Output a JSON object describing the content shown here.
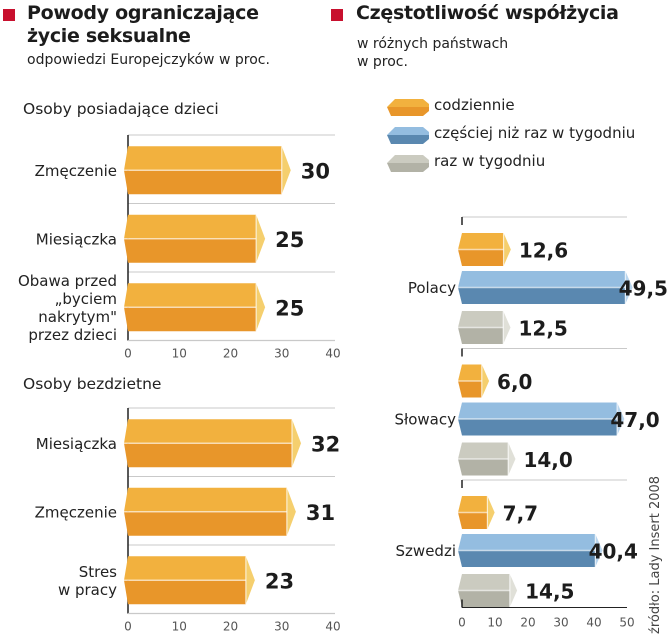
{
  "left_header": {
    "title_line1": "Powody ograniczające",
    "title_line2": "życie seksualne",
    "subtitle": "odpowiedzi Europejczyków w proc."
  },
  "right_header": {
    "title": "Częstotliwość współżycia",
    "subtitle_line1": "w różnych państwach",
    "subtitle_line2": "w proc."
  },
  "legend": [
    {
      "label": "codziennie",
      "series": "daily"
    },
    {
      "label": "częściej niż raz w tygodniu",
      "series": "more_than_weekly"
    },
    {
      "label": "raz w tygodniu",
      "series": "weekly"
    }
  ],
  "colors": {
    "accent_square": "#c8102e",
    "orange_top": "#f2b13e",
    "orange_bottom": "#e8962a",
    "orange_end": "#f5cf6e",
    "blue_top": "#94bde0",
    "blue_bottom": "#5a88b0",
    "blue_end": "#bad6ee",
    "gray_top": "#cbcbc0",
    "gray_bottom": "#b2b2a6",
    "gray_end": "#e0e0d8",
    "axis": "#222222",
    "grid": "#c9c9c9",
    "tick_label": "#555555"
  },
  "source": "źródło: Lady Insert 2008",
  "chart_data": [
    {
      "type": "bar",
      "orientation": "horizontal",
      "title": "Osoby posiadające dzieci",
      "categories": [
        "Zmęczenie",
        "Miesiączka",
        "Obawa przed „byciem nakrytym\" przez dzieci"
      ],
      "category_lines": [
        [
          "Zmęczenie"
        ],
        [
          "Miesiączka"
        ],
        [
          "Obawa przed",
          "„byciem",
          "nakrytym\"",
          "przez dzieci"
        ]
      ],
      "values": [
        30,
        25,
        25
      ],
      "value_labels": [
        "30",
        "25",
        "25"
      ],
      "xlim": [
        0,
        40
      ],
      "xticks": [
        "0",
        "10",
        "20",
        "30",
        "40"
      ],
      "unit": "proc.",
      "grid": true
    },
    {
      "type": "bar",
      "orientation": "horizontal",
      "title": "Osoby bezdzietne",
      "categories": [
        "Miesiączka",
        "Zmęczenie",
        "Stres w pracy"
      ],
      "category_lines": [
        [
          "Miesiączka"
        ],
        [
          "Zmęczenie"
        ],
        [
          "Stres",
          "w pracy"
        ]
      ],
      "values": [
        32,
        31,
        23
      ],
      "value_labels": [
        "32",
        "31",
        "23"
      ],
      "xlim": [
        0,
        40
      ],
      "xticks": [
        "0",
        "10",
        "20",
        "30",
        "40"
      ],
      "unit": "proc.",
      "grid": true
    },
    {
      "type": "bar",
      "orientation": "horizontal",
      "title": "Częstotliwość współżycia",
      "categories": [
        "Polacy",
        "Słowacy",
        "Szwedzi"
      ],
      "series": [
        {
          "name": "codziennie",
          "key": "daily",
          "values": [
            12.6,
            6.0,
            7.7
          ],
          "value_labels": [
            "12,6",
            "6,0",
            "7,7"
          ]
        },
        {
          "name": "częściej niż raz w tygodniu",
          "key": "more_than_weekly",
          "values": [
            49.5,
            47.0,
            40.4
          ],
          "value_labels": [
            "49,5",
            "47,0",
            "40,4"
          ]
        },
        {
          "name": "raz w tygodniu",
          "key": "weekly",
          "values": [
            12.5,
            14.0,
            14.5
          ],
          "value_labels": [
            "12,5",
            "14,0",
            "14,5"
          ]
        }
      ],
      "xlim": [
        0,
        50
      ],
      "xticks": [
        "0",
        "10",
        "20",
        "30",
        "40",
        "50"
      ],
      "unit": "proc.",
      "legend": "top",
      "grid": true
    }
  ]
}
